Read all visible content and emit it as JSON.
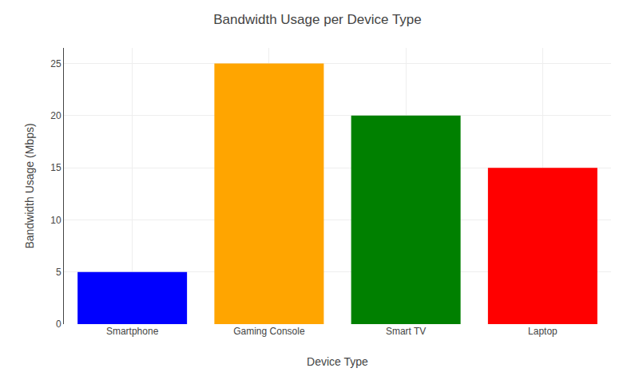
{
  "chart_data": {
    "type": "bar",
    "title": "Bandwidth Usage per Device Type",
    "categories": [
      "Smartphone",
      "Gaming Console",
      "Smart TV",
      "Laptop"
    ],
    "values": [
      5,
      25,
      20,
      15
    ],
    "colors": [
      "#0000ff",
      "#ffa500",
      "#008000",
      "#ff0000"
    ],
    "xlabel": "Device Type",
    "ylabel": "Bandwidth Usage (Mbps)",
    "ylim": [
      0,
      26.5
    ],
    "yticks": [
      0,
      5,
      10,
      15,
      20,
      25
    ],
    "grid": true
  }
}
